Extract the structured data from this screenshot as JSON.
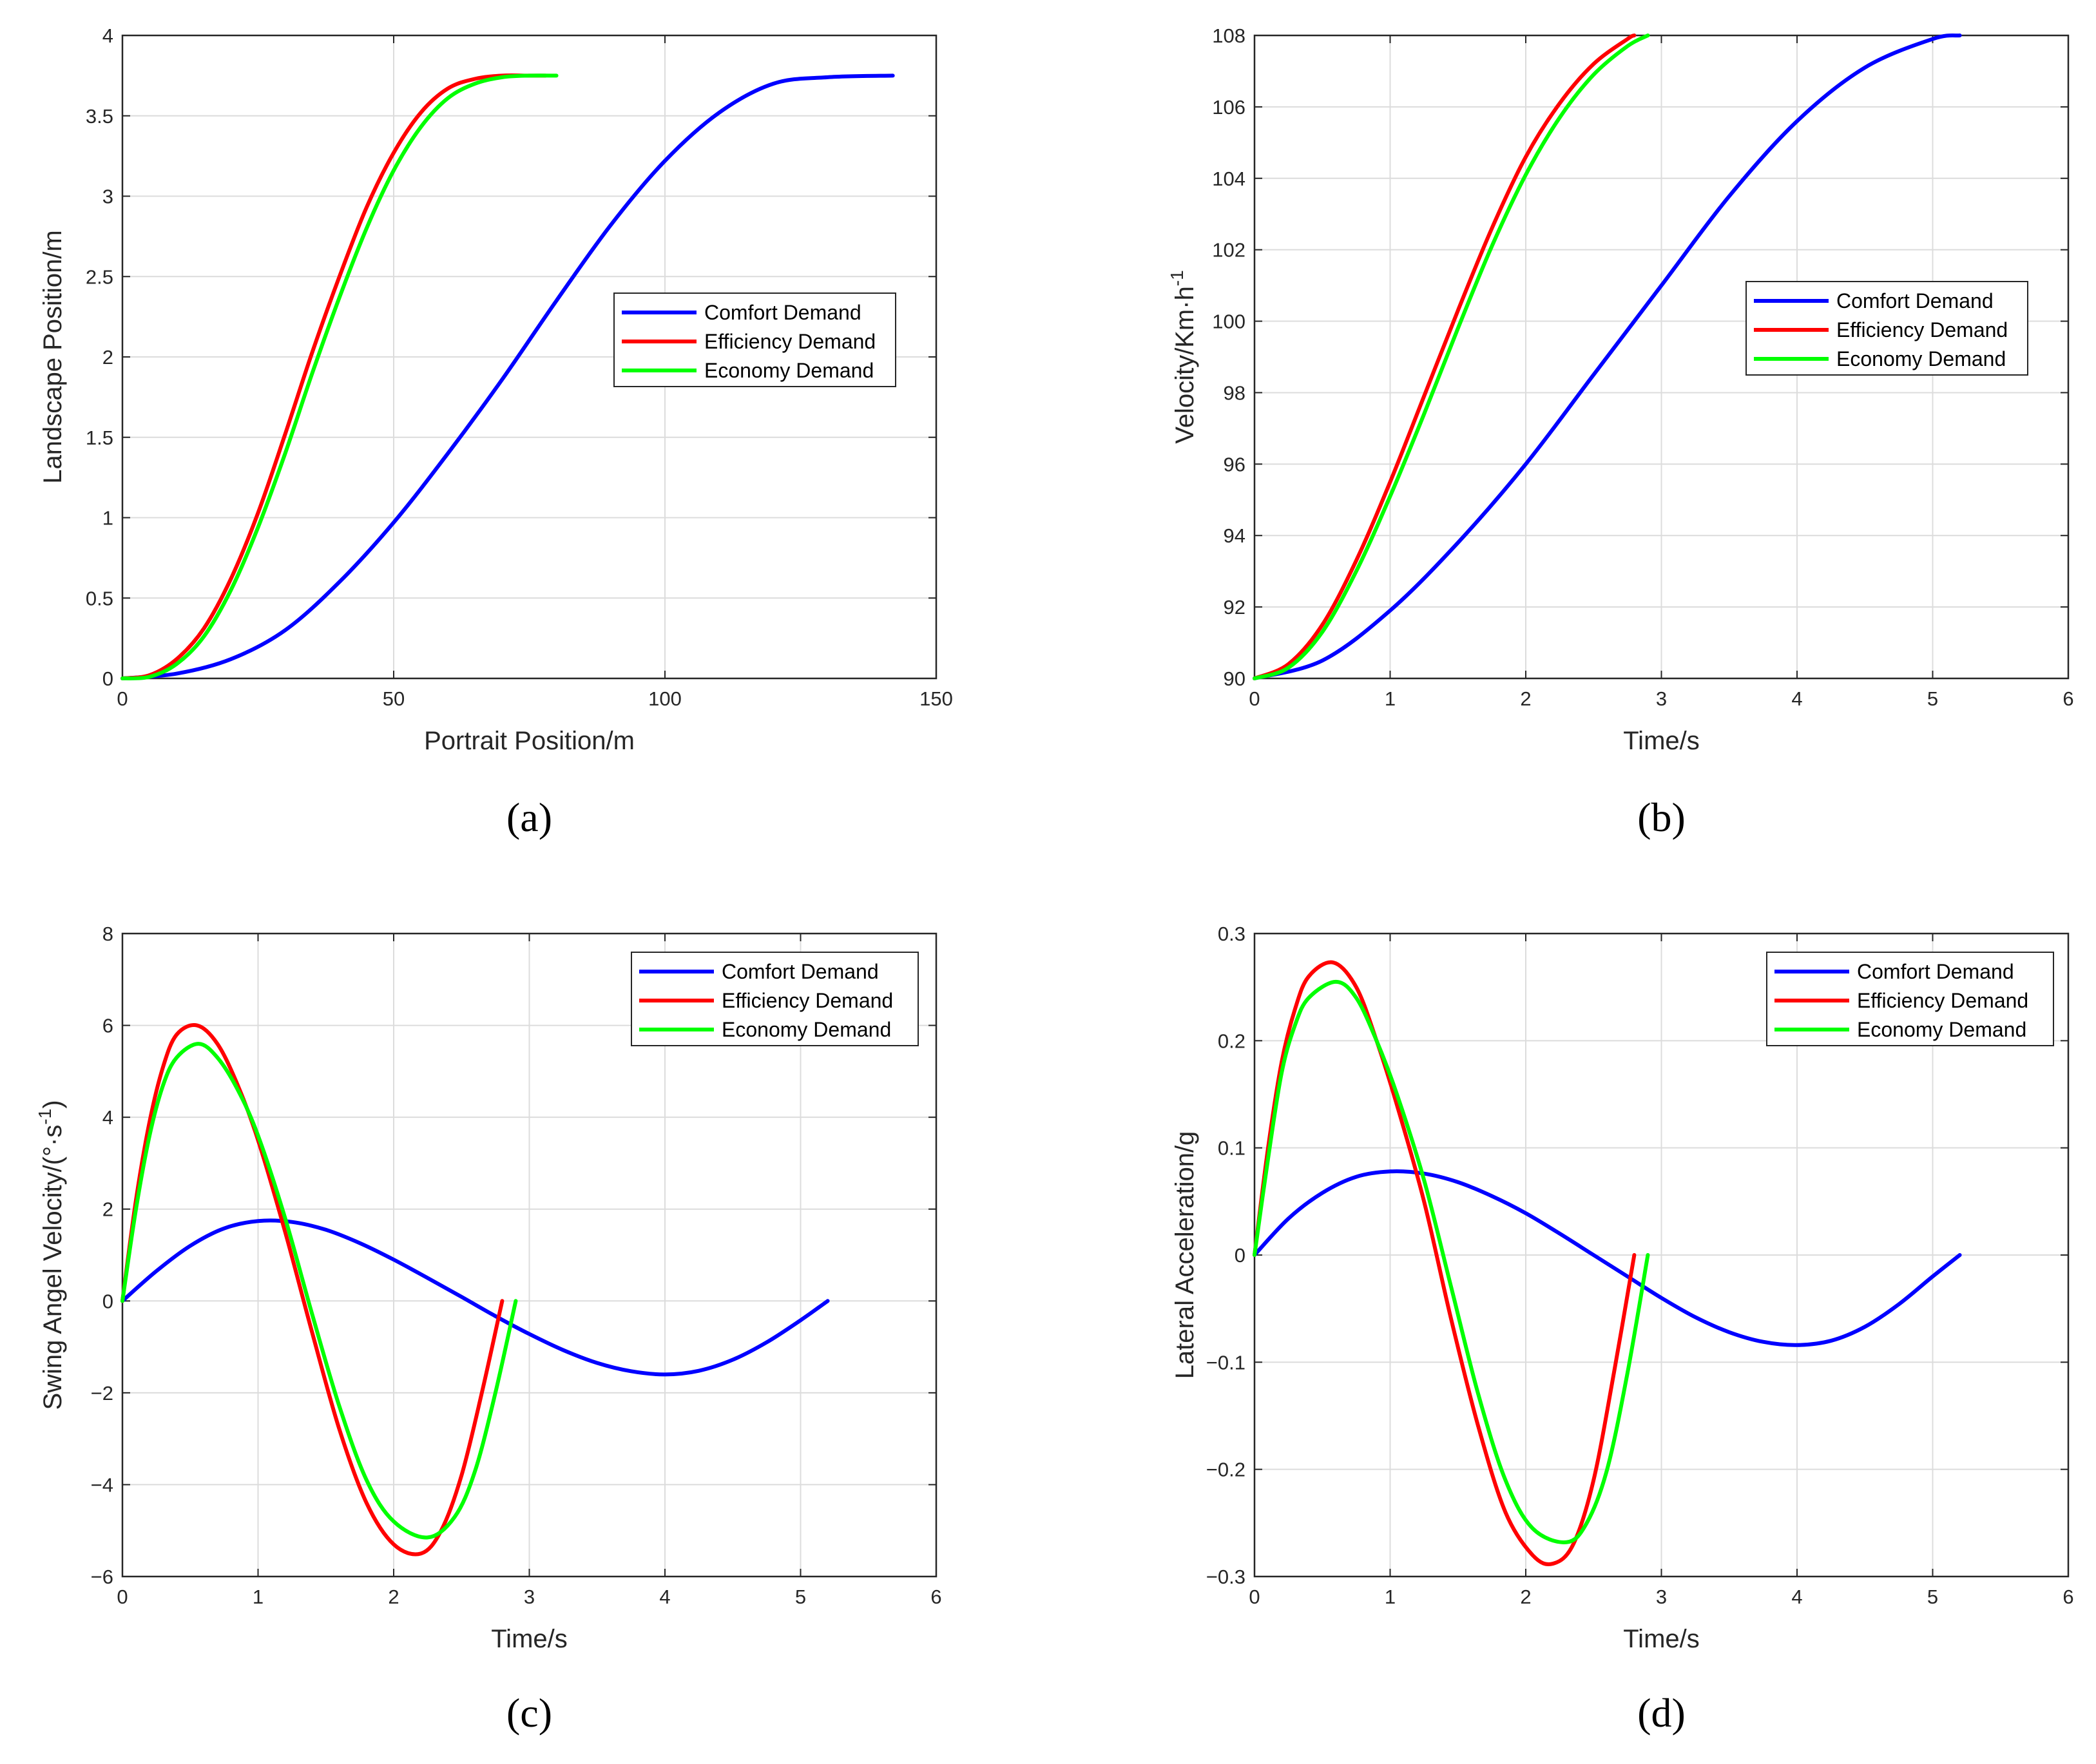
{
  "chart_data": [
    {
      "type": "line",
      "panel_label": "(a)",
      "xlabel": "Portrait Position/m",
      "ylabel": "Landscape Position/m",
      "xlim": [
        0,
        150
      ],
      "ylim": [
        0,
        4
      ],
      "xticks": [
        0,
        50,
        100,
        150
      ],
      "xtick_labels": [
        "0",
        "50",
        "100",
        "150"
      ],
      "yticks": [
        0,
        0.5,
        1,
        1.5,
        2,
        2.5,
        3,
        3.5,
        4
      ],
      "ytick_labels": [
        "0",
        "0.5",
        "1",
        "1.5",
        "2",
        "2.5",
        "3",
        "3.5",
        "4"
      ],
      "grid": true,
      "legend_position": "middle-right",
      "series": [
        {
          "name": "Comfort Demand",
          "color": "#0000ff",
          "x": [
            0,
            10,
            20,
            30,
            40,
            50,
            60,
            70,
            80,
            90,
            100,
            110,
            120,
            130,
            142
          ],
          "y": [
            0,
            0.03,
            0.12,
            0.3,
            0.6,
            0.97,
            1.4,
            1.86,
            2.35,
            2.82,
            3.22,
            3.52,
            3.7,
            3.74,
            3.75
          ]
        },
        {
          "name": "Efficiency Demand",
          "color": "#ff0000",
          "x": [
            0,
            5,
            10,
            15,
            20,
            25,
            30,
            35,
            40,
            45,
            50,
            55,
            60,
            65,
            70,
            75,
            78
          ],
          "y": [
            0,
            0.02,
            0.12,
            0.31,
            0.62,
            1.03,
            1.52,
            2.03,
            2.5,
            2.93,
            3.27,
            3.52,
            3.67,
            3.73,
            3.75,
            3.75,
            3.75
          ]
        },
        {
          "name": "Economy Demand",
          "color": "#00ff00",
          "x": [
            0,
            5,
            10,
            15,
            20,
            25,
            30,
            35,
            40,
            45,
            50,
            55,
            60,
            65,
            70,
            75,
            80
          ],
          "y": [
            0,
            0.01,
            0.09,
            0.26,
            0.55,
            0.94,
            1.4,
            1.9,
            2.37,
            2.8,
            3.16,
            3.43,
            3.61,
            3.7,
            3.74,
            3.75,
            3.75
          ]
        }
      ]
    },
    {
      "type": "line",
      "panel_label": "(b)",
      "xlabel": "Time/s",
      "ylabel": "Velocity/Km·h",
      "ylabel_superscript": "-1",
      "xlim": [
        0,
        6
      ],
      "ylim": [
        90,
        108
      ],
      "xticks": [
        0,
        1,
        2,
        3,
        4,
        5,
        6
      ],
      "xtick_labels": [
        "0",
        "1",
        "2",
        "3",
        "4",
        "5",
        "6"
      ],
      "yticks": [
        90,
        92,
        94,
        96,
        98,
        100,
        102,
        104,
        106,
        108
      ],
      "ytick_labels": [
        "90",
        "92",
        "94",
        "96",
        "98",
        "100",
        "102",
        "104",
        "106",
        "108"
      ],
      "grid": true,
      "legend_position": "middle-right",
      "series": [
        {
          "name": "Comfort Demand",
          "color": "#0000ff",
          "x": [
            0,
            0.5,
            1,
            1.5,
            2,
            2.5,
            3,
            3.5,
            4,
            4.5,
            5,
            5.2
          ],
          "y": [
            90,
            90.5,
            91.9,
            93.8,
            96,
            98.5,
            101,
            103.5,
            105.6,
            107.1,
            107.9,
            108
          ]
        },
        {
          "name": "Efficiency Demand",
          "color": "#ff0000",
          "x": [
            0,
            0.25,
            0.5,
            0.75,
            1,
            1.25,
            1.5,
            1.75,
            2,
            2.25,
            2.5,
            2.75,
            2.8
          ],
          "y": [
            90,
            90.4,
            91.5,
            93.3,
            95.5,
            97.9,
            100.3,
            102.6,
            104.6,
            106.1,
            107.2,
            107.9,
            108
          ]
        },
        {
          "name": "Economy Demand",
          "color": "#00ff00",
          "x": [
            0,
            0.25,
            0.5,
            0.75,
            1,
            1.25,
            1.5,
            1.75,
            2,
            2.25,
            2.5,
            2.75,
            2.9
          ],
          "y": [
            90,
            90.3,
            91.3,
            93.0,
            95.1,
            97.4,
            99.8,
            102.1,
            104.1,
            105.7,
            106.9,
            107.7,
            108
          ]
        }
      ]
    },
    {
      "type": "line",
      "panel_label": "(c)",
      "xlabel": "Time/s",
      "ylabel": "Swing Angel Velocity/(°·s",
      "ylabel_superscript": "-1",
      "ylabel_suffix": ")",
      "xlim": [
        0,
        6
      ],
      "ylim": [
        -6,
        8
      ],
      "xticks": [
        0,
        1,
        2,
        3,
        4,
        5,
        6
      ],
      "xtick_labels": [
        "0",
        "1",
        "2",
        "3",
        "4",
        "5",
        "6"
      ],
      "yticks": [
        -6,
        -4,
        -2,
        0,
        2,
        4,
        6,
        8
      ],
      "ytick_labels": [
        "−6",
        "−4",
        "−2",
        "0",
        "2",
        "4",
        "6",
        "8"
      ],
      "grid": true,
      "legend_position": "top-right",
      "series": [
        {
          "name": "Comfort Demand",
          "color": "#0000ff",
          "x": [
            0,
            0.25,
            0.5,
            0.75,
            1,
            1.25,
            1.5,
            1.75,
            2,
            2.25,
            2.5,
            2.75,
            3,
            3.25,
            3.5,
            3.75,
            4,
            4.25,
            4.5,
            4.75,
            5,
            5.2
          ],
          "y": [
            0,
            0.65,
            1.2,
            1.58,
            1.74,
            1.72,
            1.55,
            1.26,
            0.9,
            0.5,
            0.09,
            -0.33,
            -0.72,
            -1.07,
            -1.35,
            -1.53,
            -1.6,
            -1.52,
            -1.28,
            -0.9,
            -0.42,
            0
          ]
        },
        {
          "name": "Efficiency Demand",
          "color": "#ff0000",
          "x": [
            0,
            0.1,
            0.2,
            0.3,
            0.4,
            0.55,
            0.7,
            0.85,
            1,
            1.2,
            1.4,
            1.6,
            1.8,
            2,
            2.2,
            2.35,
            2.5,
            2.65,
            2.8
          ],
          "y": [
            0,
            2.2,
            3.9,
            5.1,
            5.8,
            6.0,
            5.6,
            4.7,
            3.5,
            1.5,
            -0.7,
            -2.8,
            -4.4,
            -5.3,
            -5.5,
            -5.0,
            -3.8,
            -2.0,
            0
          ]
        },
        {
          "name": "Economy Demand",
          "color": "#00ff00",
          "x": [
            0,
            0.1,
            0.2,
            0.3,
            0.4,
            0.56,
            0.7,
            0.85,
            1,
            1.2,
            1.4,
            1.6,
            1.8,
            2,
            2.25,
            2.45,
            2.6,
            2.75,
            2.9
          ],
          "y": [
            0,
            2.0,
            3.6,
            4.7,
            5.3,
            5.6,
            5.3,
            4.6,
            3.6,
            1.8,
            -0.3,
            -2.3,
            -3.9,
            -4.8,
            -5.15,
            -4.7,
            -3.7,
            -2.0,
            0
          ]
        }
      ]
    },
    {
      "type": "line",
      "panel_label": "(d)",
      "xlabel": "Time/s",
      "ylabel": "Lateral Acceleration/g",
      "xlim": [
        0,
        6
      ],
      "ylim": [
        -0.3,
        0.3
      ],
      "xticks": [
        0,
        1,
        2,
        3,
        4,
        5,
        6
      ],
      "xtick_labels": [
        "0",
        "1",
        "2",
        "3",
        "4",
        "5",
        "6"
      ],
      "yticks": [
        -0.3,
        -0.2,
        -0.1,
        0,
        0.1,
        0.2,
        0.3
      ],
      "ytick_labels": [
        "−0.3",
        "−0.2",
        "−0.1",
        "0",
        "0.1",
        "0.2",
        "0.3"
      ],
      "grid": true,
      "legend_position": "top-right",
      "series": [
        {
          "name": "Comfort Demand",
          "color": "#0000ff",
          "x": [
            0,
            0.25,
            0.5,
            0.75,
            1,
            1.25,
            1.5,
            1.75,
            2,
            2.25,
            2.5,
            2.75,
            3,
            3.25,
            3.5,
            3.75,
            4,
            4.25,
            4.5,
            4.75,
            5,
            5.2
          ],
          "y": [
            0,
            0.034,
            0.058,
            0.073,
            0.078,
            0.076,
            0.068,
            0.055,
            0.039,
            0.02,
            0.0,
            -0.02,
            -0.04,
            -0.058,
            -0.072,
            -0.081,
            -0.084,
            -0.08,
            -0.067,
            -0.046,
            -0.02,
            0
          ]
        },
        {
          "name": "Efficiency Demand",
          "color": "#ff0000",
          "x": [
            0,
            0.1,
            0.2,
            0.3,
            0.4,
            0.58,
            0.75,
            0.9,
            1.05,
            1.25,
            1.45,
            1.65,
            1.85,
            2.05,
            2.2,
            2.35,
            2.5,
            2.65,
            2.8
          ],
          "y": [
            0,
            0.1,
            0.18,
            0.23,
            0.26,
            0.273,
            0.25,
            0.2,
            0.14,
            0.05,
            -0.06,
            -0.16,
            -0.24,
            -0.28,
            -0.288,
            -0.27,
            -0.21,
            -0.11,
            0
          ]
        },
        {
          "name": "Economy Demand",
          "color": "#00ff00",
          "x": [
            0,
            0.1,
            0.2,
            0.3,
            0.4,
            0.6,
            0.75,
            0.9,
            1.05,
            1.25,
            1.45,
            1.65,
            1.85,
            2.05,
            2.3,
            2.45,
            2.6,
            2.75,
            2.9
          ],
          "y": [
            0,
            0.09,
            0.17,
            0.215,
            0.24,
            0.255,
            0.24,
            0.2,
            0.15,
            0.07,
            -0.03,
            -0.13,
            -0.21,
            -0.255,
            -0.268,
            -0.25,
            -0.2,
            -0.11,
            0
          ]
        }
      ]
    }
  ]
}
